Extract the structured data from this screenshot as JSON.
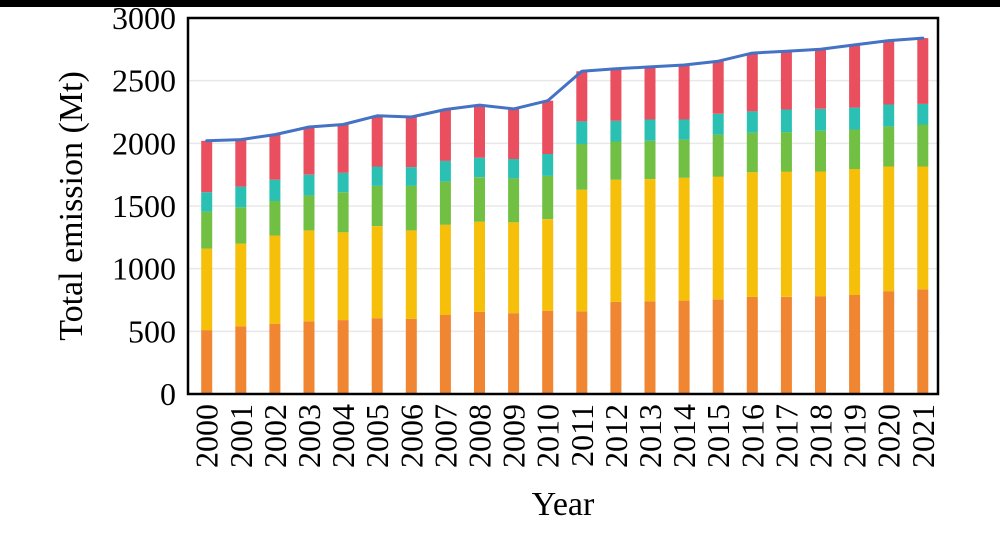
{
  "page": {
    "background": "#ffffff",
    "top_bar_color": "#000000"
  },
  "chart_data": {
    "type": "bar",
    "subtype": "stacked-bars-with-total-line-overlay",
    "title": "",
    "xlabel": "Year",
    "ylabel": "Total emission (Mt)",
    "ylim": [
      0,
      3000
    ],
    "yticks": [
      0,
      500,
      1000,
      1500,
      2000,
      2500,
      3000
    ],
    "grid": "horizontal-light-gray",
    "grid_color": "#e8e8e8",
    "frame_color": "#000000",
    "legend": "none",
    "x_tick_rotation_deg": 90,
    "categories": [
      "2000",
      "2001",
      "2002",
      "2003",
      "2004",
      "2005",
      "2006",
      "2007",
      "2008",
      "2009",
      "2010",
      "2011",
      "2012",
      "2013",
      "2014",
      "2015",
      "2016",
      "2017",
      "2018",
      "2019",
      "2020",
      "2021"
    ],
    "series": [
      {
        "name": "orange-segment",
        "color": "#F08532",
        "values": [
          510,
          540,
          560,
          580,
          590,
          605,
          600,
          630,
          655,
          645,
          665,
          660,
          735,
          740,
          745,
          755,
          775,
          775,
          780,
          790,
          820,
          835
        ]
      },
      {
        "name": "yellow-segment",
        "color": "#F5BF0A",
        "values": [
          650,
          660,
          705,
          725,
          700,
          735,
          705,
          720,
          720,
          725,
          730,
          970,
          975,
          975,
          980,
          980,
          995,
          1000,
          995,
          1005,
          995,
          980
        ]
      },
      {
        "name": "green-segment",
        "color": "#71BF43",
        "values": [
          295,
          290,
          275,
          280,
          320,
          320,
          355,
          345,
          355,
          350,
          345,
          365,
          305,
          305,
          305,
          335,
          315,
          315,
          325,
          315,
          320,
          335
        ]
      },
      {
        "name": "teal-segment",
        "color": "#2BC0B4",
        "values": [
          155,
          165,
          170,
          165,
          155,
          155,
          150,
          165,
          155,
          155,
          175,
          180,
          165,
          170,
          160,
          165,
          170,
          180,
          175,
          175,
          175,
          165
        ]
      },
      {
        "name": "red-segment",
        "color": "#E94F5E",
        "values": [
          410,
          375,
          360,
          380,
          385,
          405,
          400,
          410,
          420,
          400,
          425,
          400,
          415,
          420,
          435,
          420,
          465,
          465,
          475,
          500,
          510,
          525
        ]
      }
    ],
    "total_line": {
      "name": "total-line",
      "color": "#4472C4",
      "values": [
        2020,
        2030,
        2070,
        2130,
        2150,
        2220,
        2210,
        2270,
        2305,
        2275,
        2340,
        2575,
        2595,
        2610,
        2625,
        2655,
        2720,
        2735,
        2750,
        2785,
        2820,
        2840
      ]
    }
  }
}
